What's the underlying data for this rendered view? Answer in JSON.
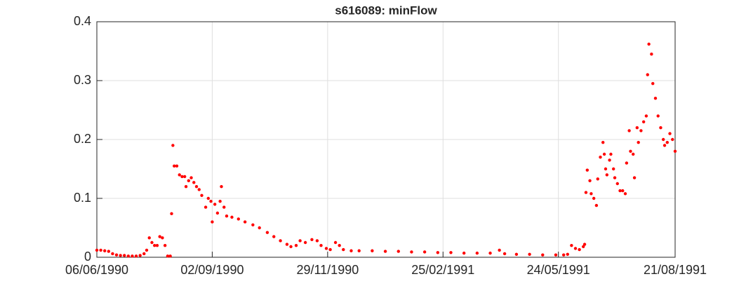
{
  "chart_data": {
    "type": "scatter",
    "title": "s616089: minFlow",
    "color": "#ff0000",
    "grid": true,
    "xlim": [
      "06/06/1990",
      "21/08/1991"
    ],
    "xticks": [
      "06/06/1990",
      "02/09/1990",
      "29/11/1990",
      "25/02/1991",
      "24/05/1991",
      "21/08/1991"
    ],
    "ylim": [
      0,
      0.4
    ],
    "yticks": [
      0,
      0.1,
      0.2,
      0.3,
      0.4
    ],
    "x": [
      "06/06/1990",
      "09/06/1990",
      "12/06/1990",
      "15/06/1990",
      "18/06/1990",
      "21/06/1990",
      "24/06/1990",
      "27/06/1990",
      "30/06/1990",
      "03/07/1990",
      "06/07/1990",
      "09/07/1990",
      "12/07/1990",
      "14/07/1990",
      "16/07/1990",
      "18/07/1990",
      "20/07/1990",
      "22/07/1990",
      "24/07/1990",
      "26/07/1990",
      "28/07/1990",
      "30/07/1990",
      "01/08/1990",
      "02/08/1990",
      "03/08/1990",
      "04/08/1990",
      "06/08/1990",
      "08/08/1990",
      "10/08/1990",
      "12/08/1990",
      "13/08/1990",
      "15/08/1990",
      "17/08/1990",
      "19/08/1990",
      "21/08/1990",
      "23/08/1990",
      "25/08/1990",
      "28/08/1990",
      "30/08/1990",
      "01/09/1990",
      "02/09/1990",
      "04/09/1990",
      "06/09/1990",
      "08/09/1990",
      "09/09/1990",
      "11/09/1990",
      "13/09/1990",
      "17/09/1990",
      "22/09/1990",
      "27/09/1990",
      "03/10/1990",
      "08/10/1990",
      "14/10/1990",
      "19/10/1990",
      "24/10/1990",
      "29/10/1990",
      "01/11/1990",
      "05/11/1990",
      "08/11/1990",
      "12/11/1990",
      "17/11/1990",
      "21/11/1990",
      "24/11/1990",
      "28/11/1990",
      "01/12/1990",
      "05/12/1990",
      "08/12/1990",
      "11/12/1990",
      "17/12/1990",
      "23/12/1990",
      "02/01/1991",
      "12/01/1991",
      "22/01/1991",
      "01/02/1991",
      "11/02/1991",
      "21/02/1991",
      "03/03/1991",
      "13/03/1991",
      "23/03/1991",
      "02/04/1991",
      "09/04/1991",
      "13/04/1991",
      "22/04/1991",
      "02/05/1991",
      "12/05/1991",
      "22/05/1991",
      "28/05/1991",
      "31/05/1991",
      "03/06/1991",
      "06/06/1991",
      "09/06/1991",
      "12/06/1991",
      "13/06/1991",
      "14/06/1991",
      "15/06/1991",
      "17/06/1991",
      "18/06/1991",
      "20/06/1991",
      "22/06/1991",
      "23/06/1991",
      "25/06/1991",
      "27/06/1991",
      "28/06/1991",
      "29/06/1991",
      "30/06/1991",
      "02/07/1991",
      "03/07/1991",
      "05/07/1991",
      "06/07/1991",
      "08/07/1991",
      "10/07/1991",
      "12/07/1991",
      "14/07/1991",
      "15/07/1991",
      "17/07/1991",
      "18/07/1991",
      "20/07/1991",
      "21/07/1991",
      "23/07/1991",
      "24/07/1991",
      "26/07/1991",
      "28/07/1991",
      "30/07/1991",
      "31/07/1991",
      "01/08/1991",
      "03/08/1991",
      "04/08/1991",
      "06/08/1991",
      "08/08/1991",
      "10/08/1991",
      "12/08/1991",
      "13/08/1991",
      "15/08/1991",
      "17/08/1991",
      "19/08/1991",
      "21/08/1991"
    ],
    "values": [
      0.012,
      0.012,
      0.011,
      0.01,
      0.006,
      0.004,
      0.003,
      0.003,
      0.002,
      0.002,
      0.002,
      0.003,
      0.006,
      0.012,
      0.033,
      0.025,
      0.02,
      0.02,
      0.035,
      0.033,
      0.02,
      0.002,
      0.002,
      0.074,
      0.19,
      0.155,
      0.155,
      0.14,
      0.137,
      0.137,
      0.12,
      0.13,
      0.135,
      0.127,
      0.12,
      0.115,
      0.105,
      0.085,
      0.1,
      0.095,
      0.06,
      0.09,
      0.075,
      0.095,
      0.12,
      0.085,
      0.07,
      0.068,
      0.065,
      0.06,
      0.055,
      0.05,
      0.042,
      0.035,
      0.028,
      0.022,
      0.018,
      0.02,
      0.028,
      0.025,
      0.03,
      0.028,
      0.02,
      0.015,
      0.013,
      0.025,
      0.02,
      0.013,
      0.011,
      0.011,
      0.011,
      0.01,
      0.01,
      0.009,
      0.009,
      0.008,
      0.008,
      0.007,
      0.007,
      0.007,
      0.012,
      0.006,
      0.005,
      0.005,
      0.004,
      0.004,
      0.004,
      0.005,
      0.02,
      0.015,
      0.013,
      0.018,
      0.022,
      0.11,
      0.148,
      0.13,
      0.108,
      0.1,
      0.088,
      0.133,
      0.17,
      0.195,
      0.175,
      0.15,
      0.14,
      0.165,
      0.175,
      0.15,
      0.135,
      0.125,
      0.113,
      0.113,
      0.108,
      0.16,
      0.215,
      0.18,
      0.175,
      0.135,
      0.22,
      0.195,
      0.215,
      0.23,
      0.24,
      0.31,
      0.362,
      0.345,
      0.295,
      0.27,
      0.24,
      0.22,
      0.2,
      0.19,
      0.195,
      0.21,
      0.2,
      0.18
    ]
  }
}
